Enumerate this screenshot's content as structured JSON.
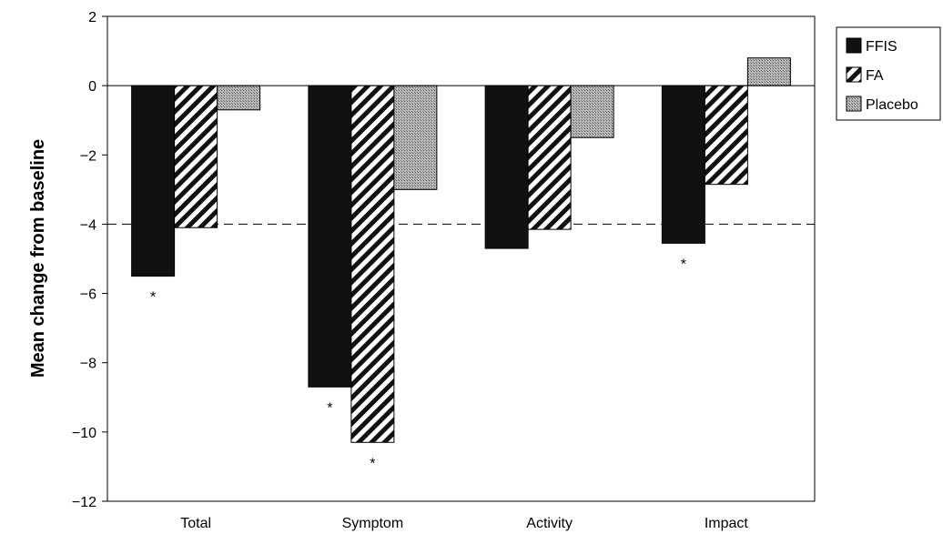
{
  "chart_data": {
    "type": "bar",
    "title": "",
    "xlabel": "",
    "ylabel": "Mean change from baseline",
    "categories": [
      "Total",
      "Symptom",
      "Activity",
      "Impact"
    ],
    "series": [
      {
        "name": "FFIS",
        "values": [
          -5.5,
          -8.7,
          -4.7,
          -4.55
        ],
        "color": "#111111",
        "pattern": "solid"
      },
      {
        "name": "FA",
        "values": [
          -4.1,
          -10.3,
          -4.15,
          -2.85
        ],
        "color": "#111111",
        "pattern": "diagonal-stripes"
      },
      {
        "name": "Placebo",
        "values": [
          -0.7,
          -3.0,
          -1.5,
          0.8
        ],
        "color": "#9a9a9a",
        "pattern": "stipple"
      }
    ],
    "ylim": [
      -12,
      2
    ],
    "yticks": [
      "2",
      "0",
      "−2",
      "−4",
      "−6",
      "−8",
      "−10",
      "−12"
    ],
    "reference_line": {
      "value": -4,
      "style": "dashed"
    },
    "significance_markers": [
      {
        "category": "Total",
        "series": "FFIS",
        "text": "*"
      },
      {
        "category": "Symptom",
        "series": "FFIS",
        "text": "*"
      },
      {
        "category": "Symptom",
        "series": "FA",
        "text": "*"
      },
      {
        "category": "Impact",
        "series": "FFIS",
        "text": "*"
      }
    ],
    "legend_position": "top-right",
    "grid": false
  }
}
